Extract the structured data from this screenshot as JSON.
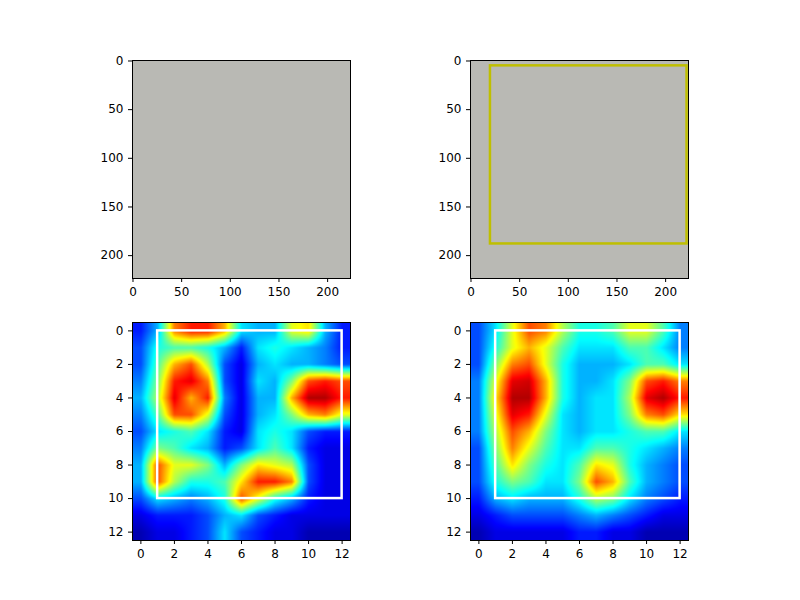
{
  "chart_data": [
    {
      "type": "image",
      "xlim": [
        -0.5,
        223.5
      ],
      "ylim": [
        223.5,
        -0.5
      ],
      "xticks": [
        0,
        50,
        100,
        150,
        200
      ],
      "yticks": [
        0,
        50,
        100,
        150,
        200
      ]
    },
    {
      "type": "image",
      "xlim": [
        -0.5,
        223.5
      ],
      "ylim": [
        223.5,
        -0.5
      ],
      "xticks": [
        0,
        50,
        100,
        150,
        200
      ],
      "yticks": [
        0,
        50,
        100,
        150,
        200
      ],
      "box": {
        "x": [
          20,
          222
        ],
        "y": [
          5,
          188
        ],
        "color": "#bfbf00"
      }
    },
    {
      "type": "heatmap",
      "color": "jet",
      "color_range": [
        0,
        1
      ],
      "xlim": [
        -0.5,
        12.5
      ],
      "ylim": [
        12.5,
        -0.5
      ],
      "xticks": [
        0,
        2,
        4,
        6,
        8,
        10,
        12
      ],
      "yticks": [
        0,
        2,
        4,
        6,
        8,
        10,
        12
      ],
      "box": {
        "x": [
          1,
          12
        ],
        "y": [
          0,
          10
        ],
        "color": "#ffffff"
      },
      "cells": [
        [
          0.15,
          0.3,
          0.75,
          0.85,
          0.85,
          0.7,
          0.35,
          0.3,
          0.3,
          0.6,
          0.65,
          0.3,
          0.15
        ],
        [
          0.2,
          0.4,
          0.45,
          0.45,
          0.4,
          0.3,
          0.15,
          0.35,
          0.4,
          0.35,
          0.3,
          0.25,
          0.15
        ],
        [
          0.2,
          0.45,
          0.7,
          0.8,
          0.55,
          0.2,
          0.1,
          0.3,
          0.35,
          0.3,
          0.3,
          0.25,
          0.2
        ],
        [
          0.25,
          0.5,
          0.85,
          0.9,
          0.75,
          0.2,
          0.1,
          0.35,
          0.3,
          0.5,
          0.8,
          0.85,
          0.8
        ],
        [
          0.3,
          0.55,
          0.9,
          0.7,
          0.85,
          0.25,
          0.1,
          0.3,
          0.3,
          0.7,
          0.95,
          0.95,
          0.85
        ],
        [
          0.25,
          0.45,
          0.8,
          0.8,
          0.6,
          0.2,
          0.1,
          0.3,
          0.35,
          0.5,
          0.7,
          0.75,
          0.6
        ],
        [
          0.2,
          0.35,
          0.4,
          0.45,
          0.35,
          0.15,
          0.1,
          0.35,
          0.4,
          0.35,
          0.2,
          0.15,
          0.15
        ],
        [
          0.25,
          0.5,
          0.45,
          0.35,
          0.3,
          0.15,
          0.2,
          0.35,
          0.45,
          0.35,
          0.15,
          0.1,
          0.1
        ],
        [
          0.3,
          0.8,
          0.6,
          0.6,
          0.5,
          0.3,
          0.5,
          0.65,
          0.6,
          0.55,
          0.2,
          0.1,
          0.1
        ],
        [
          0.3,
          0.8,
          0.55,
          0.4,
          0.4,
          0.45,
          0.65,
          0.85,
          0.85,
          0.75,
          0.2,
          0.1,
          0.1
        ],
        [
          0.2,
          0.35,
          0.3,
          0.25,
          0.3,
          0.4,
          0.8,
          0.6,
          0.4,
          0.3,
          0.15,
          0.1,
          0.1
        ],
        [
          0.1,
          0.15,
          0.15,
          0.15,
          0.2,
          0.3,
          0.35,
          0.2,
          0.15,
          0.1,
          0.1,
          0.1,
          0.1
        ],
        [
          0.05,
          0.1,
          0.1,
          0.15,
          0.2,
          0.35,
          0.2,
          0.15,
          0.1,
          0.1,
          0.05,
          0.05,
          0.05
        ]
      ]
    },
    {
      "type": "heatmap",
      "color": "jet",
      "color_range": [
        0,
        1
      ],
      "xlim": [
        -0.5,
        12.5
      ],
      "ylim": [
        12.5,
        -0.5
      ],
      "xticks": [
        0,
        2,
        4,
        6,
        8,
        10,
        12
      ],
      "yticks": [
        0,
        2,
        4,
        6,
        8,
        10,
        12
      ],
      "box": {
        "x": [
          1,
          12
        ],
        "y": [
          0,
          10
        ],
        "color": "#ffffff"
      },
      "cells": [
        [
          0.2,
          0.35,
          0.6,
          0.8,
          0.75,
          0.55,
          0.4,
          0.4,
          0.45,
          0.6,
          0.6,
          0.45,
          0.25
        ],
        [
          0.2,
          0.4,
          0.6,
          0.7,
          0.6,
          0.45,
          0.35,
          0.35,
          0.35,
          0.45,
          0.45,
          0.35,
          0.25
        ],
        [
          0.2,
          0.5,
          0.75,
          0.8,
          0.6,
          0.4,
          0.3,
          0.3,
          0.3,
          0.35,
          0.45,
          0.45,
          0.35
        ],
        [
          0.25,
          0.6,
          0.9,
          0.92,
          0.7,
          0.4,
          0.3,
          0.3,
          0.35,
          0.5,
          0.8,
          0.85,
          0.75
        ],
        [
          0.25,
          0.65,
          0.95,
          0.95,
          0.7,
          0.4,
          0.3,
          0.35,
          0.35,
          0.55,
          0.9,
          0.95,
          0.85
        ],
        [
          0.25,
          0.6,
          0.9,
          0.85,
          0.6,
          0.35,
          0.3,
          0.35,
          0.35,
          0.5,
          0.75,
          0.8,
          0.65
        ],
        [
          0.25,
          0.55,
          0.8,
          0.7,
          0.5,
          0.35,
          0.3,
          0.35,
          0.35,
          0.4,
          0.45,
          0.45,
          0.35
        ],
        [
          0.2,
          0.5,
          0.75,
          0.6,
          0.45,
          0.35,
          0.35,
          0.45,
          0.45,
          0.4,
          0.35,
          0.3,
          0.25
        ],
        [
          0.2,
          0.45,
          0.65,
          0.5,
          0.4,
          0.35,
          0.45,
          0.65,
          0.6,
          0.4,
          0.3,
          0.25,
          0.2
        ],
        [
          0.2,
          0.4,
          0.5,
          0.45,
          0.35,
          0.35,
          0.5,
          0.8,
          0.7,
          0.45,
          0.3,
          0.25,
          0.2
        ],
        [
          0.15,
          0.3,
          0.35,
          0.3,
          0.3,
          0.3,
          0.4,
          0.55,
          0.5,
          0.35,
          0.25,
          0.2,
          0.15
        ],
        [
          0.1,
          0.15,
          0.2,
          0.2,
          0.2,
          0.2,
          0.25,
          0.3,
          0.25,
          0.2,
          0.15,
          0.1,
          0.1
        ],
        [
          0.05,
          0.1,
          0.1,
          0.1,
          0.1,
          0.1,
          0.15,
          0.15,
          0.1,
          0.1,
          0.05,
          0.05,
          0.05
        ]
      ]
    }
  ]
}
